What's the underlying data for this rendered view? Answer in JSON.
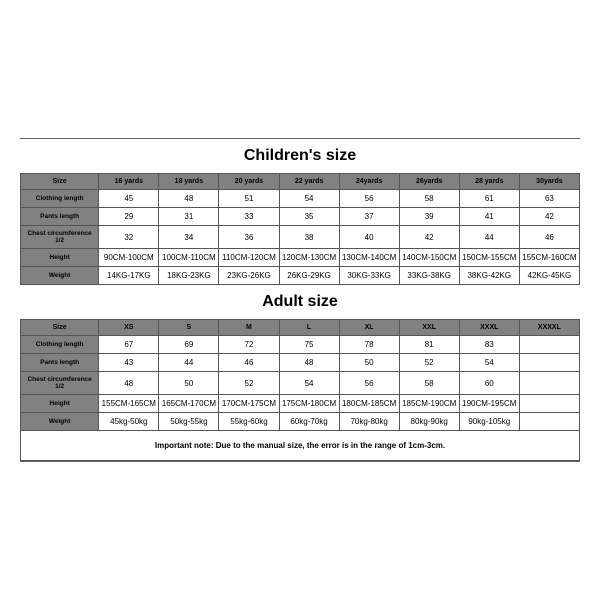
{
  "children": {
    "title": "Children's size",
    "rowLabel": "Size",
    "headers": [
      "16 yards",
      "18 yards",
      "20 yards",
      "22 yards",
      "24yards",
      "26yards",
      "28 yards",
      "30yards"
    ],
    "rows": [
      {
        "label": "Clothing length",
        "vals": [
          "45",
          "48",
          "51",
          "54",
          "56",
          "58",
          "61",
          "63"
        ]
      },
      {
        "label": "Pants length",
        "vals": [
          "29",
          "31",
          "33",
          "35",
          "37",
          "39",
          "41",
          "42"
        ]
      },
      {
        "label": "Chest circumference 1/2",
        "vals": [
          "32",
          "34",
          "36",
          "38",
          "40",
          "42",
          "44",
          "46"
        ]
      },
      {
        "label": "Height",
        "vals": [
          "90CM-100CM",
          "100CM-110CM",
          "110CM-120CM",
          "120CM-130CM",
          "130CM-140CM",
          "140CM-150CM",
          "150CM-155CM",
          "155CM-160CM"
        ]
      },
      {
        "label": "Weight",
        "vals": [
          "14KG-17KG",
          "18KG-23KG",
          "23KG-26KG",
          "26KG-29KG",
          "30KG-33KG",
          "33KG-38KG",
          "38KG-42KG",
          "42KG-45KG"
        ]
      }
    ]
  },
  "adult": {
    "title": "Adult size",
    "rowLabel": "Size",
    "headers": [
      "XS",
      "S",
      "M",
      "L",
      "XL",
      "XXL",
      "XXXL",
      "XXXXL"
    ],
    "rows": [
      {
        "label": "Clothing length",
        "vals": [
          "67",
          "69",
          "72",
          "75",
          "78",
          "81",
          "83",
          ""
        ]
      },
      {
        "label": "Pants length",
        "vals": [
          "43",
          "44",
          "46",
          "48",
          "50",
          "52",
          "54",
          ""
        ]
      },
      {
        "label": "Chest circumference 1/2",
        "vals": [
          "48",
          "50",
          "52",
          "54",
          "56",
          "58",
          "60",
          ""
        ]
      },
      {
        "label": "Height",
        "vals": [
          "155CM-165CM",
          "165CM-170CM",
          "170CM-175CM",
          "175CM-180CM",
          "180CM-185CM",
          "185CM-190CM",
          "190CM-195CM",
          ""
        ]
      },
      {
        "label": "Weight",
        "vals": [
          "45kg-50kg",
          "50kg-55kg",
          "55kg-60kg",
          "60kg-70kg",
          "70kg-80kg",
          "80kg-90kg",
          "90kg-105kg",
          ""
        ]
      }
    ]
  },
  "note": "Important note: Due to the manual size, the error is in the range of 1cm-3cm."
}
